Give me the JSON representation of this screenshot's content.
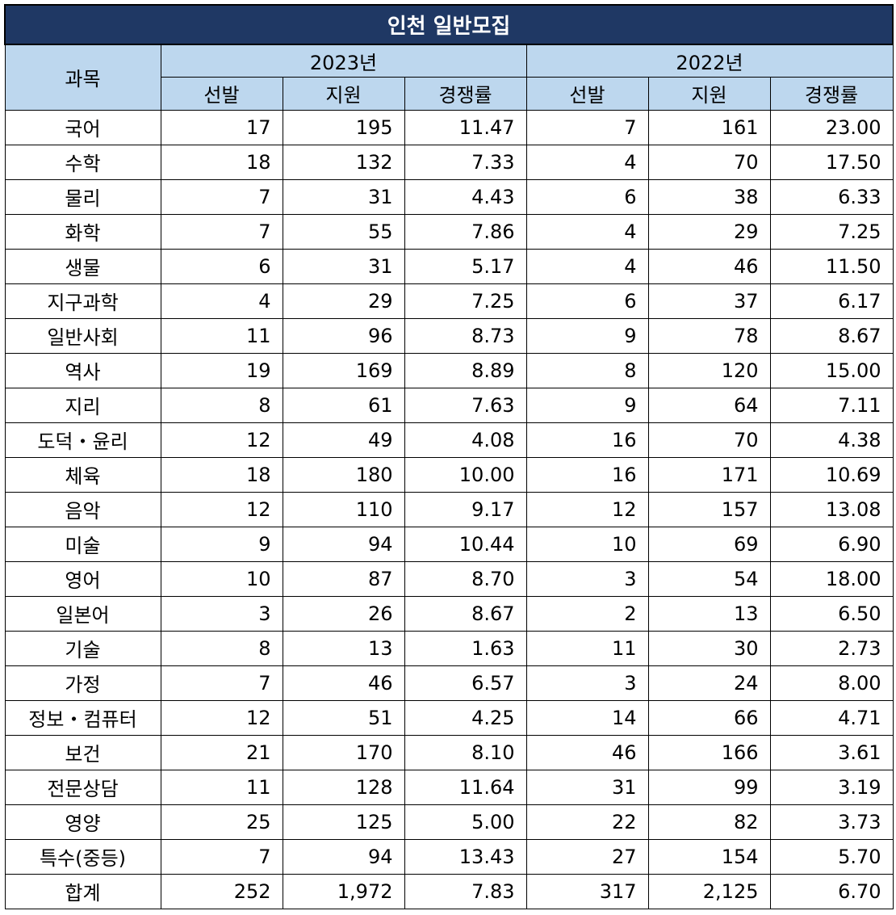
{
  "title": "인천 일반모집",
  "header": {
    "subject": "과목",
    "years": [
      "2023년",
      "2022년"
    ],
    "cols": [
      "선발",
      "지원",
      "경쟁률"
    ]
  },
  "rows": [
    {
      "subject": "국어",
      "y2023": [
        "17",
        "195",
        "11.47"
      ],
      "y2022": [
        "7",
        "161",
        "23.00"
      ]
    },
    {
      "subject": "수학",
      "y2023": [
        "18",
        "132",
        "7.33"
      ],
      "y2022": [
        "4",
        "70",
        "17.50"
      ]
    },
    {
      "subject": "물리",
      "y2023": [
        "7",
        "31",
        "4.43"
      ],
      "y2022": [
        "6",
        "38",
        "6.33"
      ]
    },
    {
      "subject": "화학",
      "y2023": [
        "7",
        "55",
        "7.86"
      ],
      "y2022": [
        "4",
        "29",
        "7.25"
      ]
    },
    {
      "subject": "생물",
      "y2023": [
        "6",
        "31",
        "5.17"
      ],
      "y2022": [
        "4",
        "46",
        "11.50"
      ]
    },
    {
      "subject": "지구과학",
      "y2023": [
        "4",
        "29",
        "7.25"
      ],
      "y2022": [
        "6",
        "37",
        "6.17"
      ]
    },
    {
      "subject": "일반사회",
      "y2023": [
        "11",
        "96",
        "8.73"
      ],
      "y2022": [
        "9",
        "78",
        "8.67"
      ]
    },
    {
      "subject": "역사",
      "y2023": [
        "19",
        "169",
        "8.89"
      ],
      "y2022": [
        "8",
        "120",
        "15.00"
      ]
    },
    {
      "subject": "지리",
      "y2023": [
        "8",
        "61",
        "7.63"
      ],
      "y2022": [
        "9",
        "64",
        "7.11"
      ]
    },
    {
      "subject": "도덕・윤리",
      "y2023": [
        "12",
        "49",
        "4.08"
      ],
      "y2022": [
        "16",
        "70",
        "4.38"
      ]
    },
    {
      "subject": "체육",
      "y2023": [
        "18",
        "180",
        "10.00"
      ],
      "y2022": [
        "16",
        "171",
        "10.69"
      ]
    },
    {
      "subject": "음악",
      "y2023": [
        "12",
        "110",
        "9.17"
      ],
      "y2022": [
        "12",
        "157",
        "13.08"
      ]
    },
    {
      "subject": "미술",
      "y2023": [
        "9",
        "94",
        "10.44"
      ],
      "y2022": [
        "10",
        "69",
        "6.90"
      ]
    },
    {
      "subject": "영어",
      "y2023": [
        "10",
        "87",
        "8.70"
      ],
      "y2022": [
        "3",
        "54",
        "18.00"
      ]
    },
    {
      "subject": "일본어",
      "y2023": [
        "3",
        "26",
        "8.67"
      ],
      "y2022": [
        "2",
        "13",
        "6.50"
      ]
    },
    {
      "subject": "기술",
      "y2023": [
        "8",
        "13",
        "1.63"
      ],
      "y2022": [
        "11",
        "30",
        "2.73"
      ]
    },
    {
      "subject": "가정",
      "y2023": [
        "7",
        "46",
        "6.57"
      ],
      "y2022": [
        "3",
        "24",
        "8.00"
      ]
    },
    {
      "subject": "정보・컴퓨터",
      "y2023": [
        "12",
        "51",
        "4.25"
      ],
      "y2022": [
        "14",
        "66",
        "4.71"
      ]
    },
    {
      "subject": "보건",
      "y2023": [
        "21",
        "170",
        "8.10"
      ],
      "y2022": [
        "46",
        "166",
        "3.61"
      ]
    },
    {
      "subject": "전문상담",
      "y2023": [
        "11",
        "128",
        "11.64"
      ],
      "y2022": [
        "31",
        "99",
        "3.19"
      ]
    },
    {
      "subject": "영양",
      "y2023": [
        "25",
        "125",
        "5.00"
      ],
      "y2022": [
        "22",
        "82",
        "3.73"
      ]
    },
    {
      "subject": "특수(중등)",
      "y2023": [
        "7",
        "94",
        "13.43"
      ],
      "y2022": [
        "27",
        "154",
        "5.70"
      ]
    },
    {
      "subject": "합계",
      "y2023": [
        "252",
        "1,972",
        "7.83"
      ],
      "y2022": [
        "317",
        "2,125",
        "6.70"
      ]
    }
  ],
  "colors": {
    "title_bg": "#1f3864",
    "header_bg": "#bdd7ee"
  }
}
